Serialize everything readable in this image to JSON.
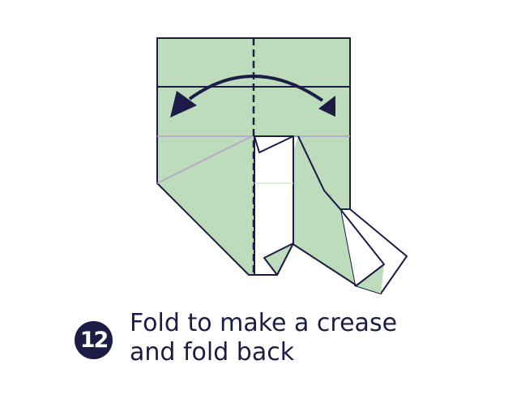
{
  "step": {
    "number": "12",
    "instruction_line1": "Fold to make a crease",
    "instruction_line2": "and fold back"
  },
  "colors": {
    "paper_green": "#bcdcbc",
    "paper_white": "#ffffff",
    "outline": "#1c1c46",
    "crease": "#b3a8cc"
  },
  "icons": [
    "double-headed-curved-arrow"
  ]
}
